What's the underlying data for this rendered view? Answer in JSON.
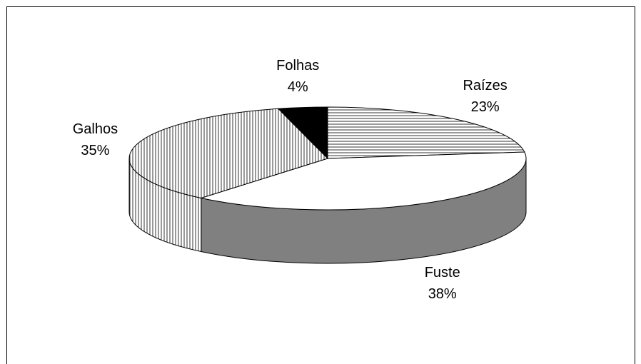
{
  "chart_data": {
    "type": "pie",
    "three_d": true,
    "categories": [
      "Raízes",
      "Fuste",
      "Galhos",
      "Folhas"
    ],
    "values": [
      23,
      38,
      35,
      4
    ],
    "value_labels": [
      "23%",
      "38%",
      "35%",
      "4%"
    ],
    "colors": [
      "#ffffff",
      "#ffffff",
      "#ffffff",
      "#000000"
    ],
    "side_colors": [
      "#ffffff",
      "#808080",
      "#ffffff",
      "#000000"
    ],
    "patterns": [
      "horizontal",
      null,
      "vertical",
      null
    ]
  }
}
